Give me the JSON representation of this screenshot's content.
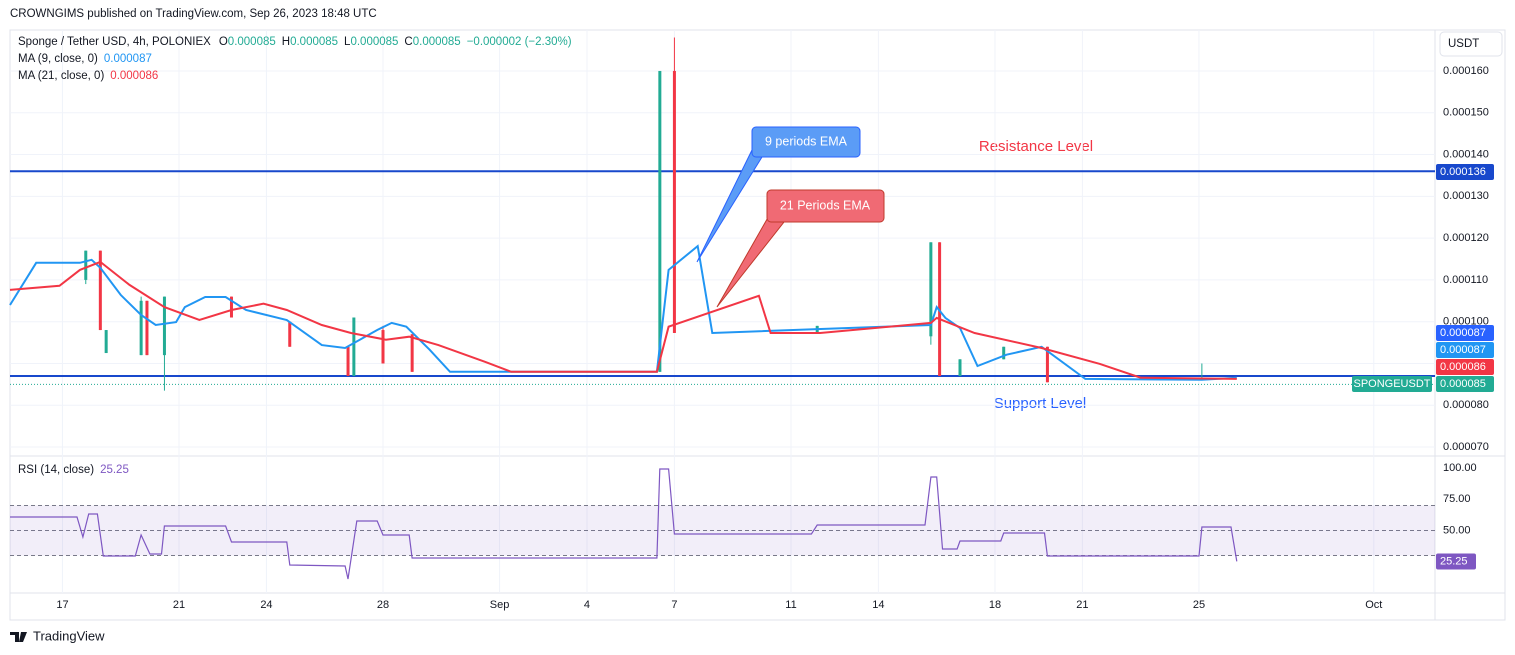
{
  "header": {
    "published": "CROWNGIMS published on TradingView.com, Sep 26, 2023 18:48 UTC"
  },
  "footer": {
    "brand": "TradingView"
  },
  "currency": "USDT",
  "symbol": "SPONGEUSDT",
  "chart_data": [
    {
      "type": "candlestick",
      "title": "Sponge / Tether USD, 4h, POLONIEX",
      "ohlc": [
        {
          "label": "O",
          "value": "0.000085"
        },
        {
          "label": "H",
          "value": "0.000085"
        },
        {
          "label": "L",
          "value": "0.000085"
        },
        {
          "label": "C",
          "value": "0.000085"
        }
      ],
      "change": "−0.000002 (−2.30%)",
      "xlim": [
        15.2,
        64.1
      ],
      "xticks": [
        {
          "value": 17,
          "label": "17"
        },
        {
          "value": 21,
          "label": "21"
        },
        {
          "value": 24,
          "label": "24"
        },
        {
          "value": 28,
          "label": "28"
        },
        {
          "value": 32,
          "label": "Sep"
        },
        {
          "value": 35,
          "label": "4"
        },
        {
          "value": 38,
          "label": "7"
        },
        {
          "value": 42,
          "label": "11"
        },
        {
          "value": 45,
          "label": "14"
        },
        {
          "value": 49,
          "label": "18"
        },
        {
          "value": 52,
          "label": "21"
        },
        {
          "value": 56,
          "label": "25"
        },
        {
          "value": 62,
          "label": "Oct"
        }
      ],
      "ylim": [
        6.81e-05,
        0.0001698
      ],
      "yticks": [
        {
          "value": 7e-05,
          "label": "0.000070"
        },
        {
          "value": 8e-05,
          "label": "0.000080"
        },
        {
          "value": 9e-05,
          "label": "0.000090"
        },
        {
          "value": 0.0001,
          "label": "0.000100"
        },
        {
          "value": 0.00011,
          "label": "0.000110"
        },
        {
          "value": 0.00012,
          "label": "0.000120"
        },
        {
          "value": 0.00013,
          "label": "0.000130"
        },
        {
          "value": 0.00014,
          "label": "0.000140"
        },
        {
          "value": 0.00015,
          "label": "0.000150"
        },
        {
          "value": 0.00016,
          "label": "0.000160"
        }
      ],
      "grid": true,
      "up_color": "#22ab94",
      "down_color": "#f23645",
      "candles": {
        "x": [
          17.8,
          18.3,
          18.5,
          19.7,
          19.9,
          20.5,
          22.8,
          24.8,
          26.8,
          27.0,
          28.0,
          29.0,
          37.5,
          38.0,
          42.9,
          46.8,
          47.1,
          47.8,
          49.3,
          50.8,
          56.1
        ],
        "open": [
          0.00011,
          0.000117,
          9.25e-05,
          9.2e-05,
          0.000105,
          9.2e-05,
          0.000106,
          0.0001,
          9.4e-05,
          8.7e-05,
          9.8e-05,
          9.7e-05,
          8.8e-05,
          0.00016,
          9.73e-05,
          9.65e-05,
          0.000119,
          8.7e-05,
          9.1e-05,
          9.4e-05,
          8.6e-05
        ],
        "high": [
          0.000117,
          0.000117,
          9.8e-05,
          0.000106,
          0.000105,
          0.000106,
          0.000106,
          0.0001,
          9.4e-05,
          0.000101,
          9.9e-05,
          9.7e-05,
          0.00016,
          0.000168,
          9.9e-05,
          0.000119,
          0.000119,
          9.1e-05,
          9.4e-05,
          9.4e-05,
          9e-05
        ],
        "low": [
          0.000109,
          9.8e-05,
          9.25e-05,
          9.2e-05,
          9.2e-05,
          8.35e-05,
          0.000101,
          9.4e-05,
          8.7e-05,
          8.7e-05,
          9e-05,
          8.8e-05,
          8.8e-05,
          9.73e-05,
          9.73e-05,
          9.45e-05,
          8.7e-05,
          8.7e-05,
          9.1e-05,
          8.55e-05,
          8.6e-05
        ],
        "close": [
          0.000117,
          9.8e-05,
          9.8e-05,
          0.000105,
          9.2e-05,
          0.000106,
          0.000101,
          9.4e-05,
          8.7e-05,
          0.000101,
          9e-05,
          8.8e-05,
          0.00016,
          9.73e-05,
          9.9e-05,
          0.000119,
          8.7e-05,
          9.1e-05,
          9.4e-05,
          8.55e-05,
          8.65e-05
        ]
      },
      "series": [
        {
          "name": "MA (9, close, 0)",
          "last_label": "0.000087",
          "color": "#2196f3",
          "x": [
            15.2,
            16.1,
            17.6,
            18.0,
            18.3,
            19.0,
            19.7,
            20.2,
            20.9,
            21.2,
            21.9,
            22.6,
            23.3,
            24.7,
            25.9,
            26.7,
            27.8,
            28.3,
            28.8,
            29.6,
            30.3,
            37.4,
            37.8,
            38.8,
            39.3,
            46.8,
            47.0,
            47.3,
            47.8,
            48.4,
            49.4,
            50.6,
            52.1,
            56.1,
            57.3
          ],
          "values": [
            0.000104,
            0.0001141,
            0.0001141,
            0.0001148,
            0.0001129,
            0.0001064,
            0.0001016,
            9.92e-05,
            9.99e-05,
            0.0001035,
            0.0001059,
            0.0001059,
            0.0001028,
            0.0001004,
            9.44e-05,
            9.37e-05,
            9.8e-05,
            9.97e-05,
            9.88e-05,
            9.33e-05,
            8.8e-05,
            8.8e-05,
            0.0001124,
            0.0001181,
            9.73e-05,
            9.92e-05,
            0.0001035,
            0.0001009,
            9.85e-05,
            8.94e-05,
            9.21e-05,
            9.4e-05,
            8.63e-05,
            8.61e-05,
            8.66e-05
          ]
        },
        {
          "name": "MA (21, close, 0)",
          "last_label": "0.000086",
          "color": "#f23645",
          "x": [
            15.2,
            16.9,
            17.6,
            18.3,
            19.3,
            20.5,
            21.7,
            22.8,
            23.9,
            24.7,
            25.9,
            26.9,
            28.1,
            28.9,
            29.9,
            31.5,
            32.4,
            37.4,
            37.8,
            40.9,
            41.3,
            43.0,
            46.8,
            47.0,
            48.3,
            50.6,
            52.6,
            54.0,
            57.3
          ],
          "values": [
            0.0001076,
            0.0001086,
            0.0001124,
            0.0001143,
            0.0001088,
            0.0001035,
            0.0001004,
            0.0001028,
            0.0001043,
            0.0001028,
            9.92e-05,
            9.73e-05,
            9.57e-05,
            9.64e-05,
            9.44e-05,
            9.04e-05,
            8.8e-05,
            8.8e-05,
            9.88e-05,
            0.0001062,
            9.73e-05,
            9.73e-05,
            9.97e-05,
            0.0001009,
            9.73e-05,
            9.37e-05,
            8.99e-05,
            8.66e-05,
            8.63e-05
          ]
        }
      ],
      "hlines": [
        {
          "value": 0.000136,
          "color": "#1848cc"
        },
        {
          "value": 8.7e-05,
          "color": "#1848cc"
        }
      ],
      "last_price": 8.5e-05,
      "price_badges": [
        {
          "label": "0.000136",
          "color": "#1848cc"
        },
        {
          "label": "0.000087",
          "color": "#2962ff"
        },
        {
          "label": "0.000087",
          "color": "#2196f3"
        },
        {
          "label": "0.000086",
          "color": "#f23645"
        },
        {
          "label": "0.000085",
          "color": "#22ab94"
        }
      ],
      "annotations": [
        {
          "text": "9 periods EMA",
          "color": "#5b9cf6"
        },
        {
          "text": "21 Periods EMA",
          "color": "#f06a74"
        },
        {
          "text": "Resistance Level",
          "color": "#f23645"
        },
        {
          "text": "Support Level",
          "color": "#2962ff"
        }
      ]
    },
    {
      "type": "line",
      "title": "RSI (14, close)",
      "last_label": "25.25",
      "color": "#7e57c2",
      "xlim": [
        15.2,
        64.1
      ],
      "ylim": [
        0,
        108
      ],
      "yticks": [
        {
          "value": 100,
          "label": "100.00"
        },
        {
          "value": 75,
          "label": "75.00"
        },
        {
          "value": 50,
          "label": "50.00"
        }
      ],
      "bands": [
        70,
        50,
        30
      ],
      "x": [
        15.2,
        17.5,
        17.7,
        17.9,
        18.2,
        18.4,
        19.5,
        19.7,
        20.0,
        20.4,
        20.5,
        22.6,
        22.8,
        24.7,
        24.8,
        26.7,
        26.8,
        27.1,
        27.8,
        28.0,
        28.9,
        29.0,
        37.4,
        37.5,
        37.8,
        38.0,
        42.7,
        42.9,
        46.6,
        46.8,
        47.0,
        47.2,
        47.7,
        47.8,
        49.2,
        49.3,
        50.7,
        50.8,
        56.0,
        56.1,
        57.1,
        57.3
      ],
      "values": [
        60.8,
        60.8,
        44.8,
        63.2,
        63.2,
        29.6,
        29.6,
        46.4,
        31.2,
        31.2,
        53.6,
        53.6,
        40.8,
        40.8,
        22.4,
        21.6,
        11.2,
        57.6,
        57.6,
        46.4,
        46.4,
        28,
        28,
        99.2,
        99.2,
        47.2,
        47.2,
        54.4,
        54.4,
        92.8,
        92.8,
        35.2,
        35.2,
        41.6,
        41.6,
        48,
        48,
        29.6,
        29.6,
        52.8,
        52.8,
        25.25
      ]
    }
  ]
}
